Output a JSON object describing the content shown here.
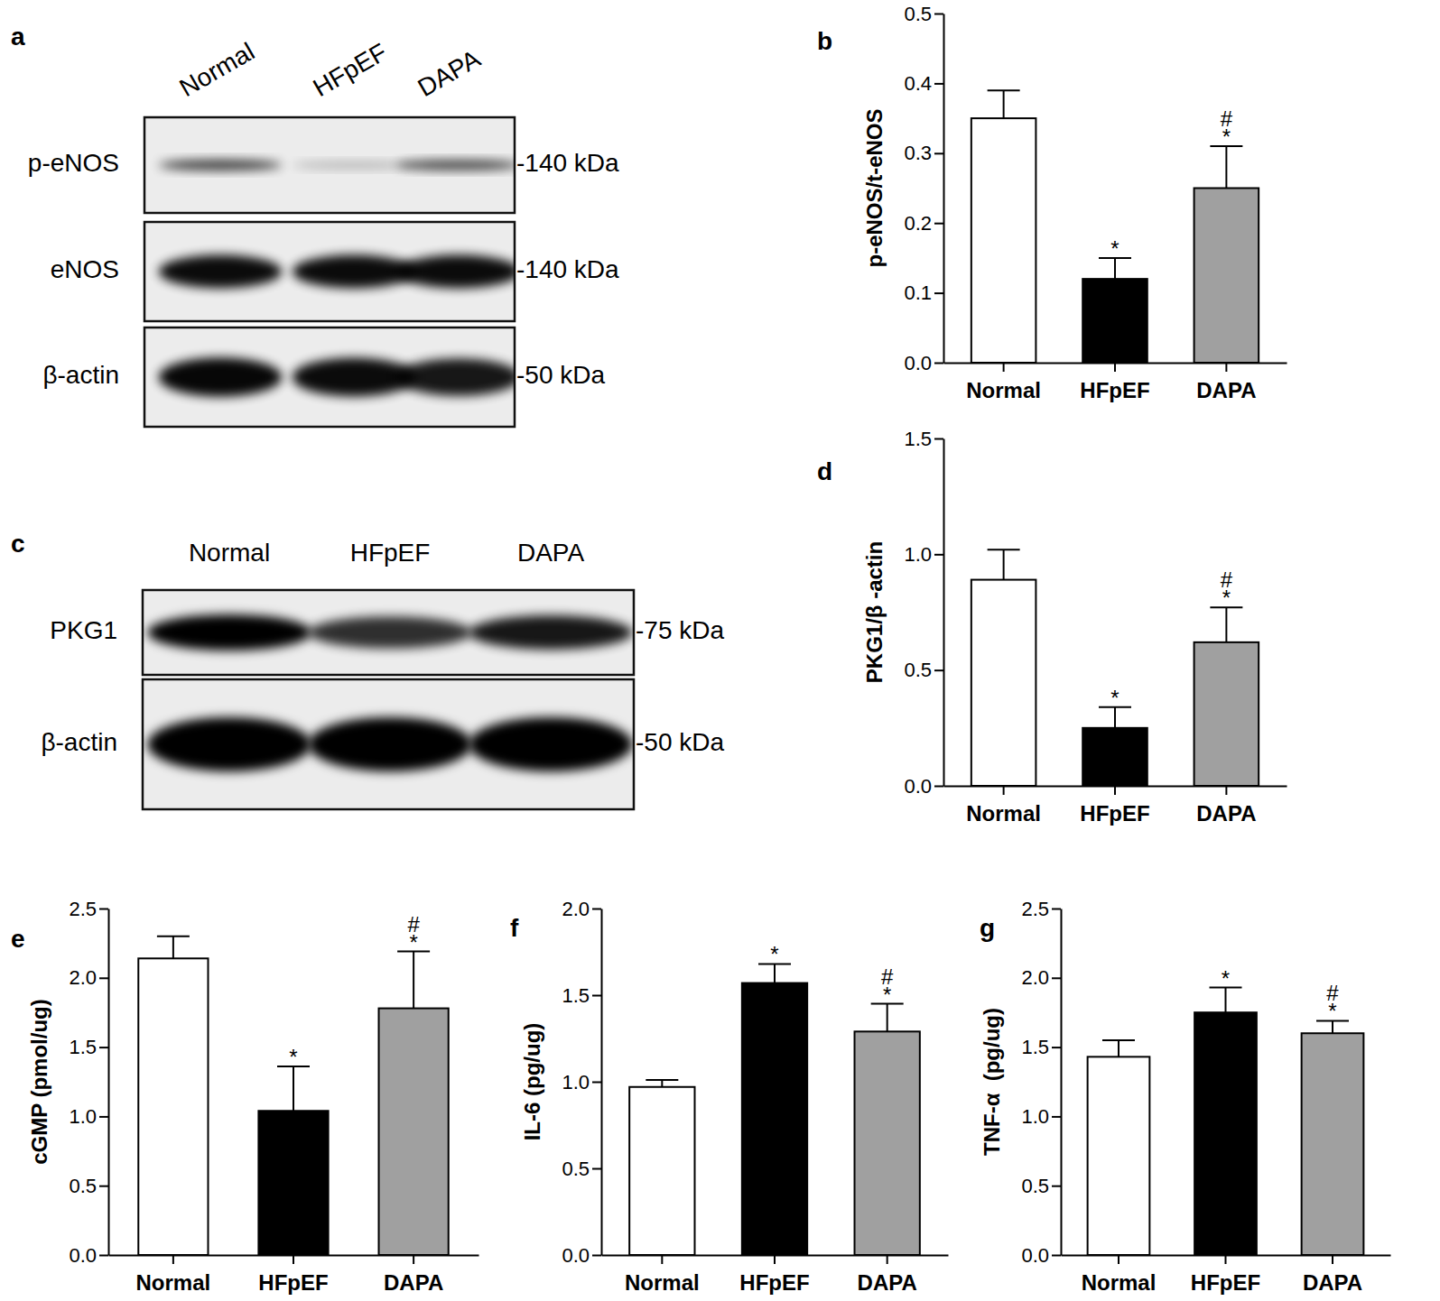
{
  "chart_data": [
    {
      "type": "blot",
      "title": "a",
      "lanes": [
        "Normal",
        "HFpEF",
        "DAPA"
      ],
      "rows": [
        {
          "label": "p-eNOS",
          "size": "-140 kDa"
        },
        {
          "label": "eNOS",
          "size": "-140 kDa"
        },
        {
          "label": "β-actin",
          "size": "-50 kDa"
        }
      ]
    },
    {
      "type": "bar",
      "title": "b",
      "categories": [
        "Normal",
        "HFpEF",
        "DAPA"
      ],
      "values": [
        0.35,
        0.12,
        0.25
      ],
      "errors": [
        0.04,
        0.03,
        0.06
      ],
      "colors": [
        "#ffffff",
        "#000000",
        "#a0a0a0"
      ],
      "ylabel": "p-eNOS/t-eNOS",
      "ylim": [
        0,
        0.5
      ],
      "yticks": [
        {
          "value": 0,
          "label": "0.0"
        },
        0.1,
        0.2,
        0.3,
        0.4,
        0.5
      ],
      "annotations": [
        [],
        [
          "*"
        ],
        [
          "#",
          "*"
        ]
      ]
    },
    {
      "type": "blot",
      "title": "c",
      "lanes": [
        "Normal",
        "HFpEF",
        "DAPA"
      ],
      "rows": [
        {
          "label": "PKG1",
          "size": "-75 kDa"
        },
        {
          "label": "β-actin",
          "size": "-50 kDa"
        }
      ]
    },
    {
      "type": "bar",
      "title": "d",
      "categories": [
        "Normal",
        "HFpEF",
        "DAPA"
      ],
      "values": [
        0.89,
        0.25,
        0.62
      ],
      "errors": [
        0.13,
        0.09,
        0.15
      ],
      "colors": [
        "#ffffff",
        "#000000",
        "#a0a0a0"
      ],
      "ylabel": "PKG1/β -actin",
      "ylim": [
        0,
        1.5
      ],
      "yticks": [
        {
          "value": 0,
          "label": "0.0"
        },
        0.5,
        {
          "value": 1,
          "label": "1.0"
        },
        1.5
      ],
      "annotations": [
        [],
        [
          "*"
        ],
        [
          "#",
          "*"
        ]
      ]
    },
    {
      "type": "bar",
      "title": "e",
      "categories": [
        "Normal",
        "HFpEF",
        "DAPA"
      ],
      "values": [
        2.14,
        1.04,
        1.78
      ],
      "errors": [
        0.16,
        0.32,
        0.41
      ],
      "colors": [
        "#ffffff",
        "#000000",
        "#a0a0a0"
      ],
      "ylabel": "cGMP (pmol/ug)",
      "ylim": [
        0,
        2.5
      ],
      "yticks": [
        {
          "value": 0,
          "label": "0.0"
        },
        0.5,
        {
          "value": 1,
          "label": "1.0"
        },
        1.5,
        {
          "value": 2,
          "label": "2.0"
        },
        2.5
      ],
      "annotations": [
        [],
        [
          "*"
        ],
        [
          "#",
          "*"
        ]
      ]
    },
    {
      "type": "bar",
      "title": "f",
      "categories": [
        "Normal",
        "HFpEF",
        "DAPA"
      ],
      "values": [
        0.97,
        1.57,
        1.29
      ],
      "errors": [
        0.04,
        0.11,
        0.16
      ],
      "colors": [
        "#ffffff",
        "#000000",
        "#a0a0a0"
      ],
      "ylabel": "IL-6 (pg/ug)",
      "ylim": [
        0,
        2
      ],
      "yticks": [
        {
          "value": 0,
          "label": "0.0"
        },
        0.5,
        {
          "value": 1,
          "label": "1.0"
        },
        1.5,
        {
          "value": 2,
          "label": "2.0"
        }
      ],
      "annotations": [
        [],
        [
          "*"
        ],
        [
          "#",
          "*"
        ]
      ]
    },
    {
      "type": "bar",
      "title": "g",
      "categories": [
        "Normal",
        "HFpEF",
        "DAPA"
      ],
      "values": [
        1.43,
        1.75,
        1.6
      ],
      "errors": [
        0.12,
        0.18,
        0.09
      ],
      "colors": [
        "#ffffff",
        "#000000",
        "#a0a0a0"
      ],
      "ylabel": "TNF-α  (pg/ug)",
      "ylim": [
        0,
        2.5
      ],
      "yticks": [
        {
          "value": 0,
          "label": "0.0"
        },
        0.5,
        {
          "value": 1,
          "label": "1.0"
        },
        1.5,
        {
          "value": 2,
          "label": "2.0"
        },
        2.5
      ],
      "annotations": [
        [],
        [
          "*"
        ],
        [
          "#",
          "*"
        ]
      ]
    }
  ]
}
